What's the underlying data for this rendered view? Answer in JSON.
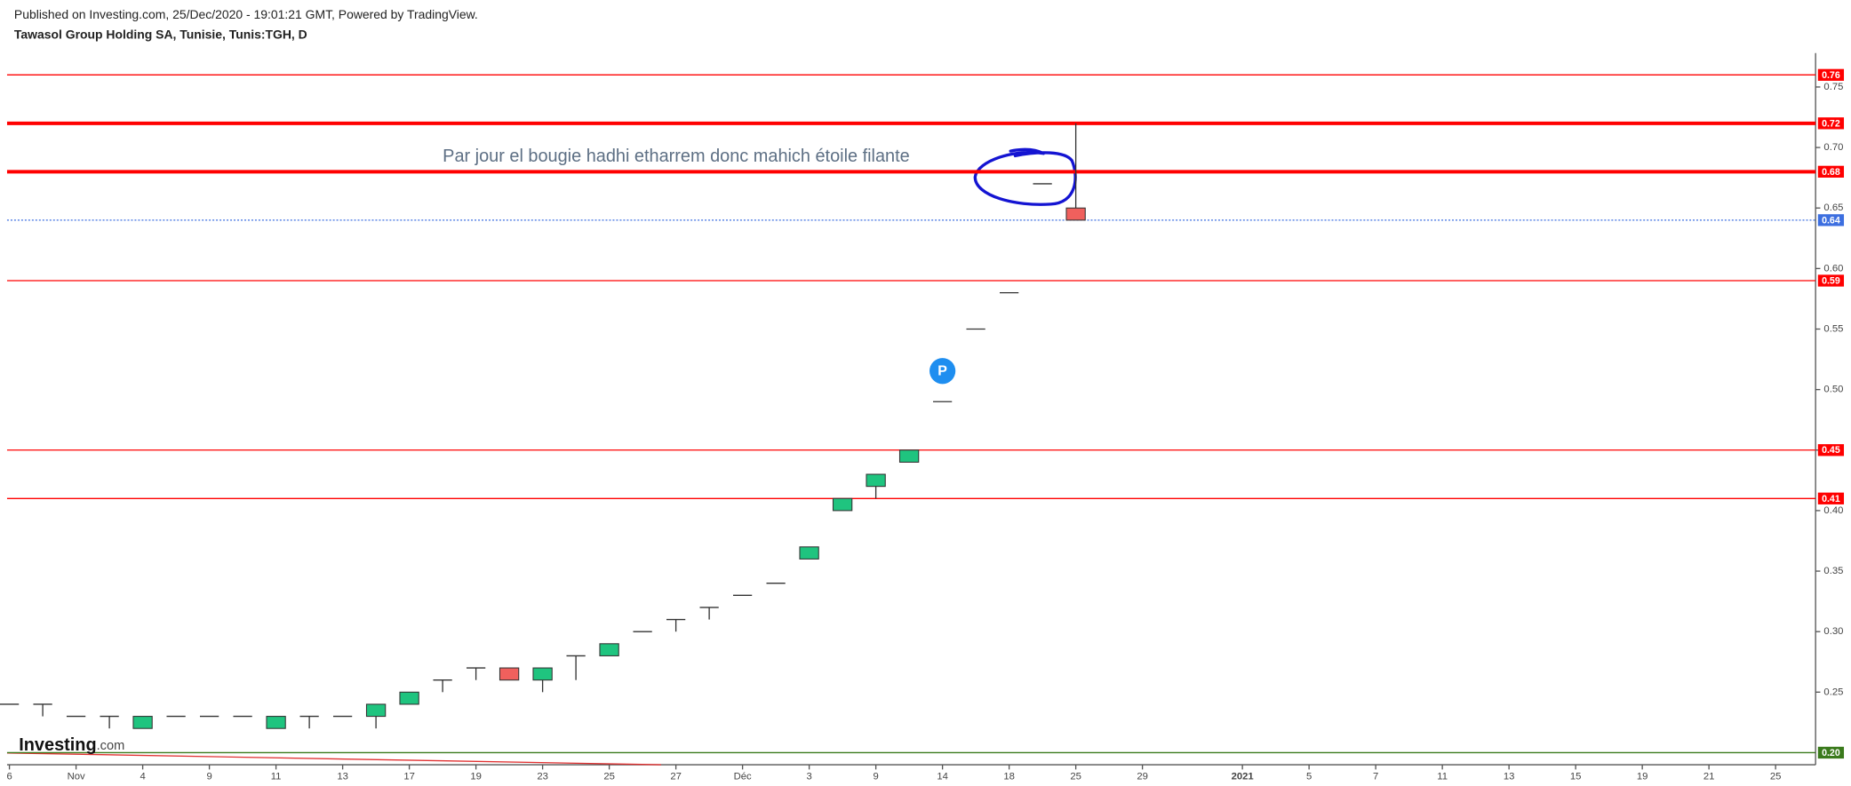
{
  "chart_data": {
    "type": "candlestick",
    "published": "Published on Investing.com, 25/Dec/2020 - 19:01:21 GMT, Powered by TradingView.",
    "title": "Tawasol Group Holding SA, Tunisie, Tunis:TGH, D",
    "annotation": "Par jour el bougie hadhi etharrem donc mahich étoile filante",
    "logo": {
      "name": "Investing",
      "suffix": ".com"
    },
    "marker": {
      "x": 28,
      "label": "P"
    },
    "x": [
      0,
      1,
      2,
      3,
      4,
      5,
      6,
      7,
      8,
      9,
      10,
      11,
      12,
      13,
      14,
      15,
      16,
      17,
      18,
      19,
      20,
      21,
      22,
      23,
      24,
      25,
      26,
      27,
      28,
      29,
      30,
      31,
      32
    ],
    "open": [
      0.24,
      0.24,
      0.23,
      0.23,
      0.22,
      0.23,
      0.23,
      0.23,
      0.22,
      0.23,
      0.23,
      0.23,
      0.24,
      0.26,
      0.27,
      0.27,
      0.26,
      0.28,
      0.28,
      0.3,
      0.31,
      0.32,
      0.33,
      0.34,
      0.36,
      0.4,
      0.42,
      0.44,
      0.49,
      0.55,
      0.58,
      0.67,
      0.65
    ],
    "high": [
      0.24,
      0.24,
      0.23,
      0.23,
      0.23,
      0.23,
      0.23,
      0.23,
      0.23,
      0.23,
      0.23,
      0.24,
      0.25,
      0.26,
      0.27,
      0.27,
      0.27,
      0.28,
      0.29,
      0.3,
      0.31,
      0.32,
      0.33,
      0.34,
      0.37,
      0.41,
      0.43,
      0.45,
      0.49,
      0.55,
      0.58,
      0.67,
      0.72
    ],
    "low": [
      0.24,
      0.23,
      0.23,
      0.22,
      0.22,
      0.23,
      0.23,
      0.23,
      0.22,
      0.22,
      0.23,
      0.22,
      0.24,
      0.25,
      0.26,
      0.26,
      0.25,
      0.26,
      0.28,
      0.3,
      0.3,
      0.31,
      0.33,
      0.34,
      0.36,
      0.4,
      0.41,
      0.44,
      0.49,
      0.55,
      0.58,
      0.67,
      0.64
    ],
    "close": [
      0.24,
      0.24,
      0.23,
      0.23,
      0.23,
      0.23,
      0.23,
      0.23,
      0.23,
      0.23,
      0.23,
      0.24,
      0.25,
      0.26,
      0.27,
      0.26,
      0.27,
      0.28,
      0.29,
      0.3,
      0.31,
      0.32,
      0.33,
      0.34,
      0.37,
      0.41,
      0.43,
      0.45,
      0.49,
      0.55,
      0.58,
      0.67,
      0.64
    ],
    "up_color": "#1fc47f",
    "down_color": "#f0605d",
    "levels": [
      {
        "value": 0.76,
        "color": "#ff0000",
        "width": 1
      },
      {
        "value": 0.72,
        "color": "#ff0000",
        "width": 3
      },
      {
        "value": 0.68,
        "color": "#ff0000",
        "width": 3
      },
      {
        "value": 0.64,
        "color": "#3d6fe0",
        "width": 1,
        "dash": true
      },
      {
        "value": 0.59,
        "color": "#ff0000",
        "width": 1
      },
      {
        "value": 0.45,
        "color": "#ff0000",
        "width": 1
      },
      {
        "value": 0.41,
        "color": "#ff0000",
        "width": 1
      },
      {
        "value": 0.2,
        "label": "0.20",
        "color": "#3a7a1c",
        "width": 1
      }
    ],
    "ylim": [
      0.19,
      0.778
    ],
    "yticks": [
      0.25,
      {
        "value": 0.3,
        "label": "0.30"
      },
      0.35,
      {
        "value": 0.4,
        "label": "0.40"
      },
      0.45,
      {
        "value": 0.5,
        "label": "0.50"
      },
      0.55,
      {
        "value": 0.6,
        "label": "0.60"
      },
      0.65,
      {
        "value": 0.7,
        "label": "0.70"
      },
      0.75
    ],
    "xlim": [
      -0.07,
      54.2
    ],
    "xticks": [
      {
        "value": 0,
        "label": "6"
      },
      {
        "value": 2,
        "label": "Nov"
      },
      {
        "value": 4,
        "label": "4"
      },
      {
        "value": 6,
        "label": "9"
      },
      {
        "value": 8,
        "label": "11"
      },
      {
        "value": 10,
        "label": "13"
      },
      {
        "value": 12,
        "label": "17"
      },
      {
        "value": 14,
        "label": "19"
      },
      {
        "value": 16,
        "label": "23"
      },
      {
        "value": 18,
        "label": "25"
      },
      {
        "value": 20,
        "label": "27"
      },
      {
        "value": 22,
        "label": "Déc"
      },
      {
        "value": 24,
        "label": "3"
      },
      {
        "value": 26,
        "label": "9"
      },
      {
        "value": 28,
        "label": "14"
      },
      {
        "value": 30,
        "label": "18"
      },
      {
        "value": 32,
        "label": "25"
      },
      {
        "value": 34,
        "label": "29"
      },
      {
        "value": 37,
        "label": "2021"
      },
      {
        "value": 39,
        "label": "5"
      },
      {
        "value": 41,
        "label": "7"
      },
      {
        "value": 43,
        "label": "11"
      },
      {
        "value": 45,
        "label": "13"
      },
      {
        "value": 47,
        "label": "15"
      },
      {
        "value": 49,
        "label": "19"
      },
      {
        "value": 51,
        "label": "21"
      },
      {
        "value": 53,
        "label": "25"
      }
    ]
  }
}
